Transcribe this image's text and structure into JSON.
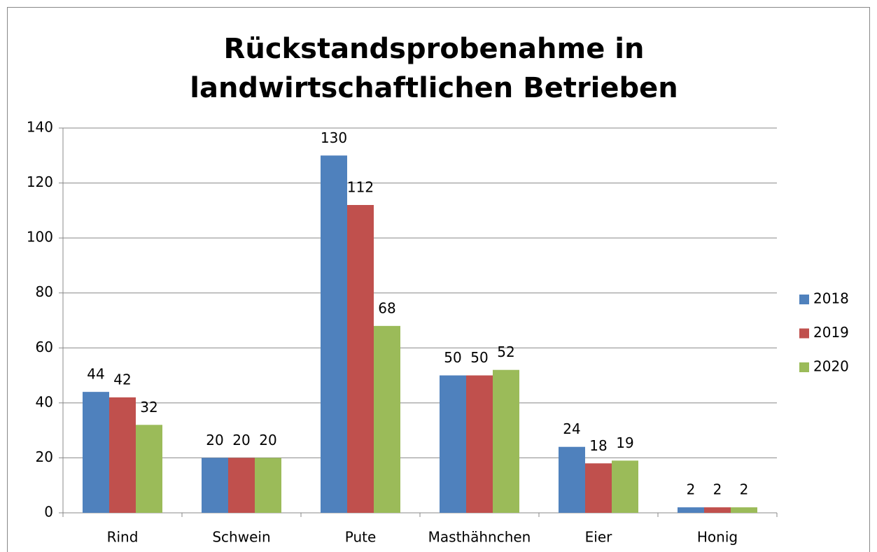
{
  "chart_data": {
    "type": "bar",
    "title": "Rückstandsprobenahme in landwirtschaftlichen Betrieben",
    "categories": [
      "Rind",
      "Schwein",
      "Pute",
      "Masthähnchen",
      "Eier",
      "Honig"
    ],
    "series": [
      {
        "name": "2018",
        "color": "#4f81bd",
        "values": [
          44,
          20,
          130,
          50,
          24,
          2
        ]
      },
      {
        "name": "2019",
        "color": "#c0504d",
        "values": [
          42,
          20,
          112,
          50,
          18,
          2
        ]
      },
      {
        "name": "2020",
        "color": "#9bbb59",
        "values": [
          32,
          20,
          68,
          52,
          19,
          2
        ]
      }
    ],
    "ylim": [
      0,
      140
    ],
    "yticks": [
      0,
      20,
      40,
      60,
      80,
      100,
      120,
      140
    ],
    "grid": true,
    "legend": "right"
  }
}
